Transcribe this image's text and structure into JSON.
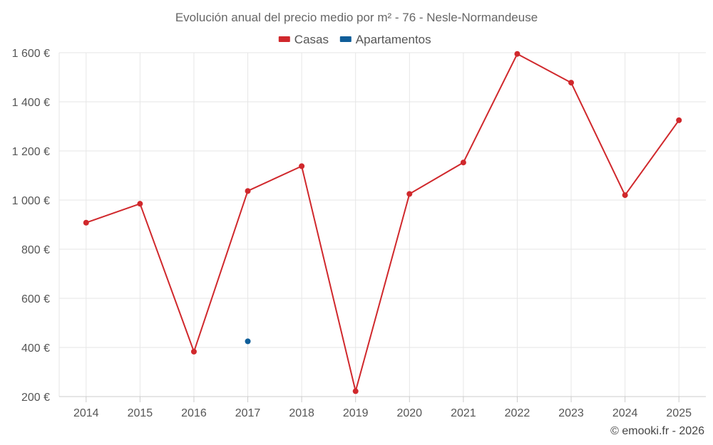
{
  "chart_data": {
    "type": "line",
    "title": "Evolución anual del precio medio por m² - 76 - Nesle-Normandeuse",
    "categories": [
      "2014",
      "2015",
      "2016",
      "2017",
      "2018",
      "2019",
      "2020",
      "2021",
      "2022",
      "2023",
      "2024",
      "2025"
    ],
    "series": [
      {
        "name": "Casas",
        "color": "#d0282c",
        "values": [
          908,
          985,
          383,
          1037,
          1138,
          222,
          1025,
          1153,
          1595,
          1478,
          1020,
          1325
        ]
      },
      {
        "name": "Apartamentos",
        "color": "#0f5e99",
        "values": [
          null,
          null,
          null,
          425,
          null,
          null,
          null,
          null,
          null,
          null,
          null,
          null
        ]
      }
    ],
    "ylim": [
      200,
      1600
    ],
    "yticks": [
      200,
      400,
      600,
      800,
      1000,
      1200,
      1400,
      1600
    ],
    "ytick_labels": [
      "200 €",
      "400 €",
      "600 €",
      "800 €",
      "1 000 €",
      "1 200 €",
      "1 400 €",
      "1 600 €"
    ],
    "grid": true,
    "legend_position": "top-center"
  },
  "credit": "© emooki.fr - 2026"
}
